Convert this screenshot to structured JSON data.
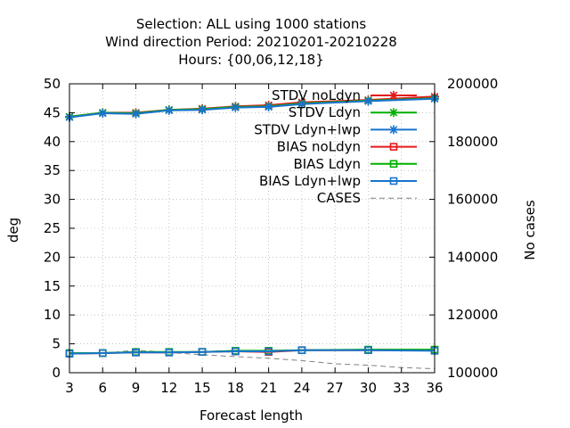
{
  "chart_data": {
    "type": "line",
    "title_lines": [
      "Selection: ALL using  1000 stations",
      "Wind direction   Period: 20210201-20210228",
      "Hours: {00,06,12,18}"
    ],
    "xlabel": "Forecast length",
    "ylabel": "deg",
    "y2label": "No cases",
    "x": [
      3,
      6,
      9,
      12,
      15,
      18,
      21,
      24,
      27,
      30,
      33,
      36
    ],
    "xlim": [
      3,
      36
    ],
    "ylim": [
      0,
      50
    ],
    "y2lim": [
      100000,
      200000
    ],
    "xticks": [
      "3",
      "6",
      "9",
      "12",
      "15",
      "18",
      "21",
      "24",
      "27",
      "30",
      "33",
      "36"
    ],
    "yticks": [
      "0",
      "5",
      "10",
      "15",
      "20",
      "25",
      "30",
      "35",
      "40",
      "45",
      "50"
    ],
    "y2ticks": [
      "100000",
      "120000",
      "140000",
      "160000",
      "180000",
      "200000"
    ],
    "grid": true,
    "legend_position": "top-right",
    "series": [
      {
        "name": "STDV noLdyn",
        "color": "#e31a1c",
        "marker": "star",
        "axis": "y",
        "x": [
          3,
          6,
          9,
          12,
          15,
          18,
          21,
          24,
          30,
          36
        ],
        "values": [
          44.3,
          45.0,
          45.0,
          45.5,
          45.7,
          46.1,
          46.3,
          46.8,
          47.2,
          47.8
        ]
      },
      {
        "name": "STDV Ldyn",
        "color": "#00b000",
        "marker": "star",
        "axis": "y",
        "x": [
          3,
          6,
          9,
          12,
          15,
          18,
          21,
          24,
          30,
          36
        ],
        "values": [
          44.3,
          45.0,
          44.9,
          45.5,
          45.6,
          46.0,
          46.1,
          46.6,
          47.1,
          47.5
        ]
      },
      {
        "name": "STDV Ldyn+lwp",
        "color": "#1874cd",
        "marker": "star",
        "axis": "y",
        "x": [
          3,
          6,
          9,
          12,
          15,
          18,
          21,
          24,
          30,
          36
        ],
        "values": [
          44.2,
          44.9,
          44.8,
          45.4,
          45.5,
          45.9,
          46.0,
          46.5,
          47.0,
          47.4
        ]
      },
      {
        "name": "BIAS noLdyn",
        "color": "#e31a1c",
        "marker": "square",
        "axis": "y",
        "x": [
          3,
          6,
          9,
          12,
          15,
          18,
          21,
          24,
          30,
          36
        ],
        "values": [
          3.3,
          3.4,
          3.5,
          3.5,
          3.6,
          3.7,
          3.6,
          3.9,
          3.9,
          3.9
        ]
      },
      {
        "name": "BIAS Ldyn",
        "color": "#00b000",
        "marker": "square",
        "axis": "y",
        "x": [
          3,
          6,
          9,
          12,
          15,
          18,
          21,
          24,
          30,
          36
        ],
        "values": [
          3.4,
          3.4,
          3.6,
          3.6,
          3.6,
          3.8,
          3.8,
          3.9,
          4.0,
          4.0
        ]
      },
      {
        "name": "BIAS Ldyn+lwp",
        "color": "#1874cd",
        "marker": "square",
        "axis": "y",
        "x": [
          3,
          6,
          9,
          12,
          15,
          18,
          21,
          24,
          30,
          36
        ],
        "values": [
          3.3,
          3.4,
          3.5,
          3.5,
          3.6,
          3.7,
          3.7,
          3.9,
          3.9,
          3.8
        ]
      },
      {
        "name": "CASES",
        "color": "#808080",
        "marker": "none",
        "dashed": true,
        "axis": "y2",
        "x": [
          3,
          6,
          9,
          12,
          15,
          18,
          21,
          24,
          27,
          30,
          33,
          36
        ],
        "values": [
          107000,
          106700,
          107800,
          107000,
          106200,
          105600,
          105000,
          104200,
          103100,
          102600,
          101800,
          101400
        ]
      }
    ]
  }
}
